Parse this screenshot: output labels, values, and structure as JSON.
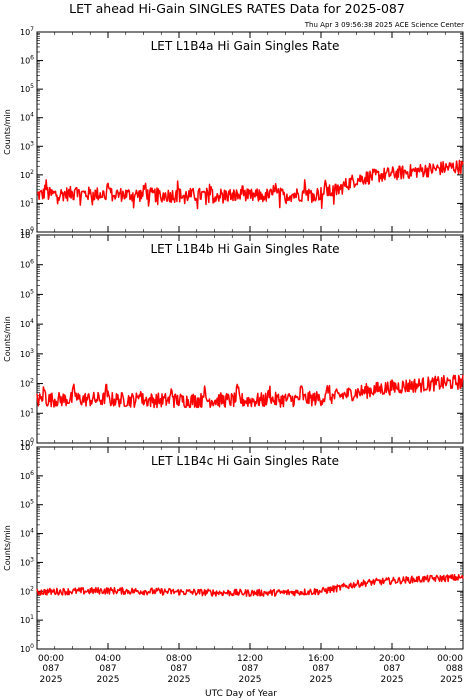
{
  "page_title": "LET ahead Hi-Gain SINGLES RATES Data for 2025-087",
  "timestamp": "Thu Apr  3 09:56:38 2025 ACE Science Center",
  "x_axis_title": "UTC Day of Year",
  "colors": {
    "series": "#ff0000",
    "panel_title": "#0000cc",
    "axes": "#000000"
  },
  "x_ticks": [
    {
      "time": "00:00",
      "doy": "087",
      "year": "2025",
      "hour": 0
    },
    {
      "time": "04:00",
      "doy": "087",
      "year": "2025",
      "hour": 4
    },
    {
      "time": "08:00",
      "doy": "087",
      "year": "2025",
      "hour": 8
    },
    {
      "time": "12:00",
      "doy": "087",
      "year": "2025",
      "hour": 12
    },
    {
      "time": "16:00",
      "doy": "087",
      "year": "2025",
      "hour": 16
    },
    {
      "time": "20:00",
      "doy": "087",
      "year": "2025",
      "hour": 20
    },
    {
      "time": "00:00",
      "doy": "088",
      "year": "2025",
      "hour": 24
    }
  ],
  "y_ticks": [
    {
      "base": "10",
      "exp": "0"
    },
    {
      "base": "10",
      "exp": "1"
    },
    {
      "base": "10",
      "exp": "2"
    },
    {
      "base": "10",
      "exp": "3"
    },
    {
      "base": "10",
      "exp": "4"
    },
    {
      "base": "10",
      "exp": "5"
    },
    {
      "base": "10",
      "exp": "6"
    },
    {
      "base": "10",
      "exp": "7"
    }
  ],
  "chart_data": [
    {
      "type": "line",
      "title": "LET L1B4a Hi Gain Singles Rate",
      "ylabel": "Counts/min",
      "yscale": "log",
      "ylim": [
        1,
        10000000
      ],
      "xlim": [
        0,
        24
      ],
      "grid": false,
      "x": [
        0,
        2,
        4,
        6,
        8,
        10,
        12,
        14,
        15,
        16,
        17,
        17.5,
        18,
        19,
        20,
        21,
        22,
        23,
        24
      ],
      "values": [
        20,
        22,
        21,
        20,
        19,
        20,
        18,
        20,
        21,
        22,
        30,
        50,
        70,
        90,
        110,
        130,
        150,
        175,
        200
      ],
      "spike_hours": [
        0.5,
        2.2,
        4.0,
        6.1,
        7.9,
        9.8,
        11.6,
        13.4,
        15.1,
        16.3
      ]
    },
    {
      "type": "line",
      "title": "LET L1B4b Hi Gain Singles Rate",
      "ylabel": "Counts/min",
      "yscale": "log",
      "ylim": [
        1,
        10000000
      ],
      "xlim": [
        0,
        24
      ],
      "grid": false,
      "x": [
        0,
        2,
        4,
        6,
        8,
        10,
        12,
        14,
        15,
        16,
        17,
        18,
        19,
        20,
        21,
        22,
        23,
        24
      ],
      "values": [
        28,
        30,
        29,
        28,
        27,
        28,
        27,
        29,
        30,
        32,
        38,
        50,
        62,
        75,
        85,
        95,
        105,
        115
      ],
      "spike_hours": [
        0.4,
        2.1,
        3.9,
        5.8,
        7.6,
        9.4,
        11.3,
        13.1,
        14.9,
        16.4
      ]
    },
    {
      "type": "line",
      "title": "LET L1B4c Hi Gain Singles Rate",
      "ylabel": "Counts/min",
      "yscale": "log",
      "ylim": [
        1,
        10000000
      ],
      "xlim": [
        0,
        24
      ],
      "grid": false,
      "x": [
        0,
        2,
        4,
        6,
        8,
        10,
        12,
        14,
        16,
        17,
        18,
        19,
        20,
        21,
        22,
        23,
        24
      ],
      "values": [
        95,
        100,
        105,
        100,
        95,
        90,
        88,
        90,
        100,
        130,
        180,
        210,
        230,
        250,
        270,
        285,
        300
      ],
      "spike_hours": []
    }
  ]
}
